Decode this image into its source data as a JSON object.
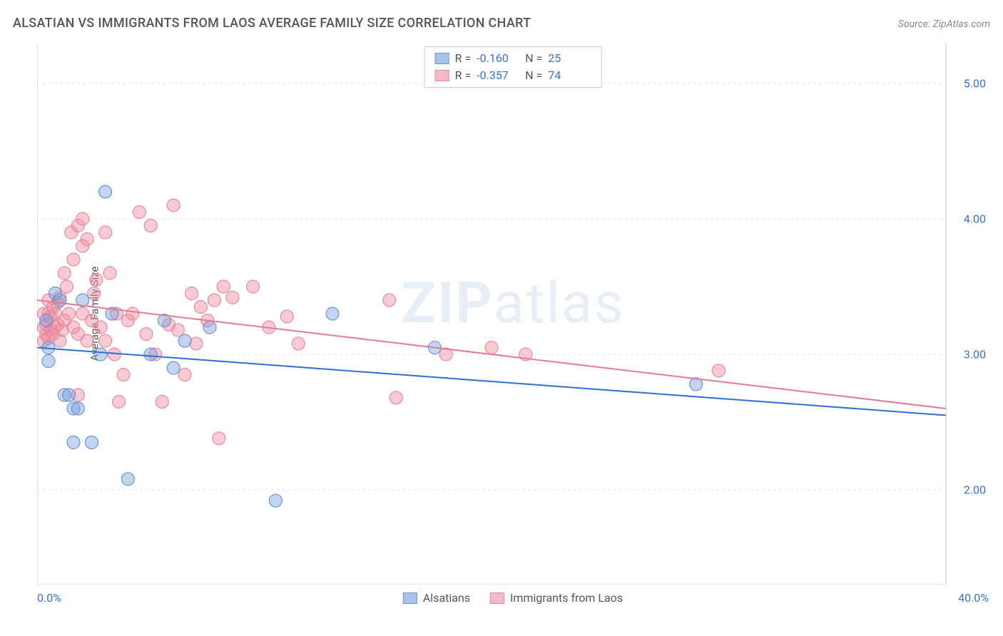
{
  "title": "ALSATIAN VS IMMIGRANTS FROM LAOS AVERAGE FAMILY SIZE CORRELATION CHART",
  "source": "Source: ZipAtlas.com",
  "watermark_bold": "ZIP",
  "watermark_light": "atlas",
  "y_axis_label": "Average Family Size",
  "chart": {
    "type": "scatter-with-trendlines",
    "background_color": "#ffffff",
    "grid_color": "#e5e5e5",
    "axis_color": "#cccccc",
    "tick_text_color": "#3b6fd6",
    "xlim": [
      0,
      40
    ],
    "ylim": [
      1.3,
      5.3
    ],
    "y_ticks": [
      2.0,
      3.0,
      4.0,
      5.0
    ],
    "x_tick_marks": [
      0,
      4,
      8,
      12,
      16,
      20,
      24,
      28,
      32,
      36,
      40
    ],
    "x_labels": {
      "min": "0.0%",
      "max": "40.0%"
    },
    "series": [
      {
        "name": "Alsatians",
        "fill": "rgba(120,160,220,0.45)",
        "stroke": "#6a95d0",
        "swatch_fill": "#a9c4eb",
        "swatch_border": "#6a95d0",
        "marker_r": 9,
        "R": "-0.160",
        "N": "25",
        "trend": {
          "y_at_x0": 3.05,
          "y_at_x40": 2.55,
          "color": "#2f6fd6",
          "width": 2
        },
        "points": [
          [
            0.4,
            3.25
          ],
          [
            0.5,
            3.05
          ],
          [
            0.5,
            2.95
          ],
          [
            0.8,
            3.45
          ],
          [
            1.0,
            3.4
          ],
          [
            1.2,
            2.7
          ],
          [
            1.4,
            2.7
          ],
          [
            1.6,
            2.35
          ],
          [
            1.6,
            2.6
          ],
          [
            1.8,
            2.6
          ],
          [
            2.0,
            3.4
          ],
          [
            2.4,
            2.35
          ],
          [
            2.8,
            3.0
          ],
          [
            3.0,
            4.2
          ],
          [
            3.3,
            3.3
          ],
          [
            4.0,
            2.08
          ],
          [
            5.0,
            3.0
          ],
          [
            5.6,
            3.25
          ],
          [
            6.0,
            2.9
          ],
          [
            6.5,
            3.1
          ],
          [
            7.6,
            3.2
          ],
          [
            10.5,
            1.92
          ],
          [
            13.0,
            3.3
          ],
          [
            17.5,
            3.05
          ],
          [
            29.0,
            2.78
          ]
        ]
      },
      {
        "name": "Immigrants from Laos",
        "fill": "rgba(240,140,160,0.45)",
        "stroke": "#e58aa0",
        "swatch_fill": "#f5b9c7",
        "swatch_border": "#e58aa0",
        "marker_r": 9,
        "R": "-0.357",
        "N": "74",
        "trend": {
          "y_at_x0": 3.4,
          "y_at_x40": 2.6,
          "color": "#e57a95",
          "width": 2
        },
        "points": [
          [
            0.3,
            3.1
          ],
          [
            0.3,
            3.2
          ],
          [
            0.3,
            3.3
          ],
          [
            0.4,
            3.15
          ],
          [
            0.4,
            3.22
          ],
          [
            0.5,
            3.12
          ],
          [
            0.5,
            3.3
          ],
          [
            0.5,
            3.4
          ],
          [
            0.6,
            3.18
          ],
          [
            0.6,
            3.28
          ],
          [
            0.7,
            3.15
          ],
          [
            0.7,
            3.35
          ],
          [
            0.8,
            3.2
          ],
          [
            0.8,
            3.3
          ],
          [
            0.9,
            3.22
          ],
          [
            0.9,
            3.38
          ],
          [
            1.0,
            3.1
          ],
          [
            1.0,
            3.42
          ],
          [
            1.1,
            3.18
          ],
          [
            1.2,
            3.6
          ],
          [
            1.2,
            3.25
          ],
          [
            1.3,
            3.5
          ],
          [
            1.4,
            3.3
          ],
          [
            1.5,
            3.9
          ],
          [
            1.6,
            3.7
          ],
          [
            1.6,
            3.2
          ],
          [
            1.8,
            3.15
          ],
          [
            1.8,
            3.95
          ],
          [
            1.8,
            2.7
          ],
          [
            2.0,
            4.0
          ],
          [
            2.0,
            3.8
          ],
          [
            2.0,
            3.3
          ],
          [
            2.2,
            3.85
          ],
          [
            2.2,
            3.1
          ],
          [
            2.4,
            3.25
          ],
          [
            2.5,
            3.45
          ],
          [
            2.6,
            3.55
          ],
          [
            2.8,
            3.2
          ],
          [
            3.0,
            3.9
          ],
          [
            3.0,
            3.1
          ],
          [
            3.2,
            3.6
          ],
          [
            3.4,
            3.0
          ],
          [
            3.5,
            3.3
          ],
          [
            3.6,
            2.65
          ],
          [
            3.8,
            2.85
          ],
          [
            4.0,
            3.25
          ],
          [
            4.2,
            3.3
          ],
          [
            4.5,
            4.05
          ],
          [
            4.8,
            3.15
          ],
          [
            5.0,
            3.95
          ],
          [
            5.2,
            3.0
          ],
          [
            5.5,
            2.65
          ],
          [
            5.8,
            3.22
          ],
          [
            6.0,
            4.1
          ],
          [
            6.2,
            3.18
          ],
          [
            6.5,
            2.85
          ],
          [
            6.8,
            3.45
          ],
          [
            7.0,
            3.08
          ],
          [
            7.2,
            3.35
          ],
          [
            7.5,
            3.25
          ],
          [
            7.8,
            3.4
          ],
          [
            8.0,
            2.38
          ],
          [
            8.2,
            3.5
          ],
          [
            8.6,
            3.42
          ],
          [
            9.5,
            3.5
          ],
          [
            10.2,
            3.2
          ],
          [
            11.0,
            3.28
          ],
          [
            11.5,
            3.08
          ],
          [
            15.5,
            3.4
          ],
          [
            15.8,
            2.68
          ],
          [
            18.0,
            3.0
          ],
          [
            20.0,
            3.05
          ],
          [
            21.5,
            3.0
          ],
          [
            30.0,
            2.88
          ]
        ]
      }
    ]
  },
  "legend_stats_labels": {
    "R": "R =",
    "N": "N ="
  }
}
